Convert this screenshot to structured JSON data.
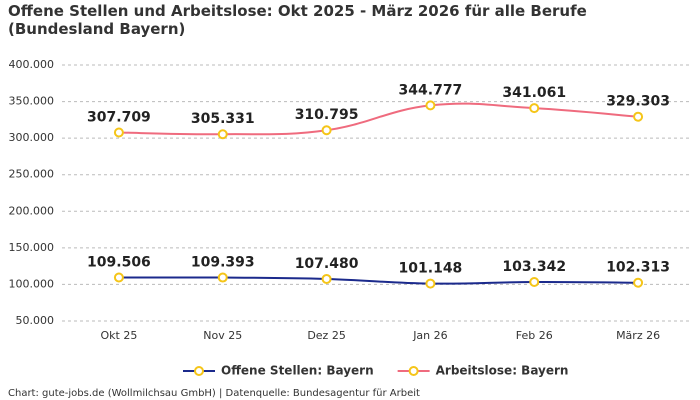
{
  "chart_data": {
    "type": "line",
    "title": "Offene Stellen und Arbeitslose: Okt 2025 - März 2026 für alle Berufe (Bundesland Bayern)",
    "categories": [
      "Okt 25",
      "Nov 25",
      "Dez 25",
      "Jan 26",
      "Feb 26",
      "März 26"
    ],
    "series": [
      {
        "name": "Offene Stellen: Bayern",
        "color": "#1b2a8c",
        "values": [
          109506,
          109393,
          107480,
          101148,
          103342,
          102313
        ],
        "value_labels": [
          "109.506",
          "109.393",
          "107.480",
          "101.148",
          "103.342",
          "102.313"
        ]
      },
      {
        "name": "Arbeitslose: Bayern",
        "color": "#ef6b7e",
        "values": [
          307709,
          305331,
          310795,
          344777,
          341061,
          329303
        ],
        "value_labels": [
          "307.709",
          "305.331",
          "310.795",
          "344.777",
          "341.061",
          "329.303"
        ]
      }
    ],
    "marker_color": "#f5c518",
    "ylim": [
      50000,
      400000
    ],
    "yticks": [
      {
        "value": 50000,
        "label": "50.000"
      },
      {
        "value": 100000,
        "label": "100.000"
      },
      {
        "value": 150000,
        "label": "150.000"
      },
      {
        "value": 200000,
        "label": "200.000"
      },
      {
        "value": 250000,
        "label": "250.000"
      },
      {
        "value": 300000,
        "label": "300.000"
      },
      {
        "value": 350000,
        "label": "350.000"
      },
      {
        "value": 400000,
        "label": "400.000"
      }
    ],
    "grid": true,
    "legend": "bottom",
    "source": "Chart: gute-jobs.de (Wollmilchsau GmbH) | Datenquelle: Bundesagentur für Arbeit"
  }
}
